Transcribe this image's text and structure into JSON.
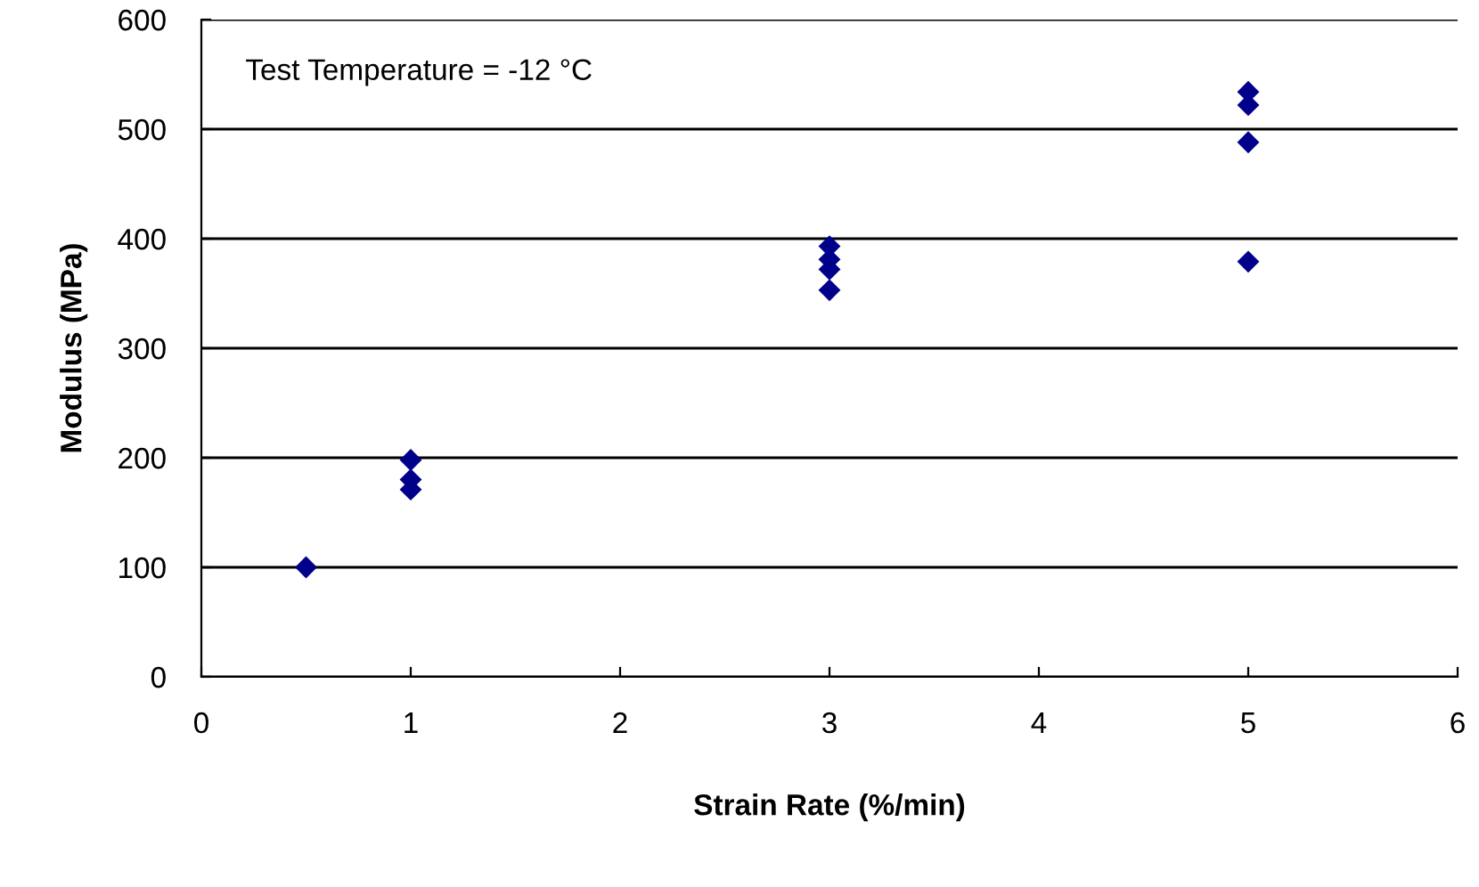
{
  "chart_data": {
    "type": "scatter",
    "xlabel": "Strain Rate (%/min)",
    "ylabel": "Modulus (MPa)",
    "annotations": [
      "Test Temperature = -12 °C"
    ],
    "series": [
      {
        "color": "#00008b",
        "x": [
          0.5,
          1,
          1,
          1,
          3,
          3,
          3,
          3,
          5,
          5,
          5,
          5
        ],
        "values": [
          100,
          198,
          180,
          171,
          393,
          381,
          372,
          353,
          534,
          522,
          488,
          379
        ]
      }
    ],
    "marker": "diamond",
    "xlim": [
      0,
      6
    ],
    "xticks": [
      0,
      1,
      2,
      3,
      4,
      5,
      6
    ],
    "ylim": [
      0,
      600
    ],
    "yticks": [
      0,
      100,
      200,
      300,
      400,
      500,
      600
    ],
    "grid": "y",
    "legend": false
  }
}
